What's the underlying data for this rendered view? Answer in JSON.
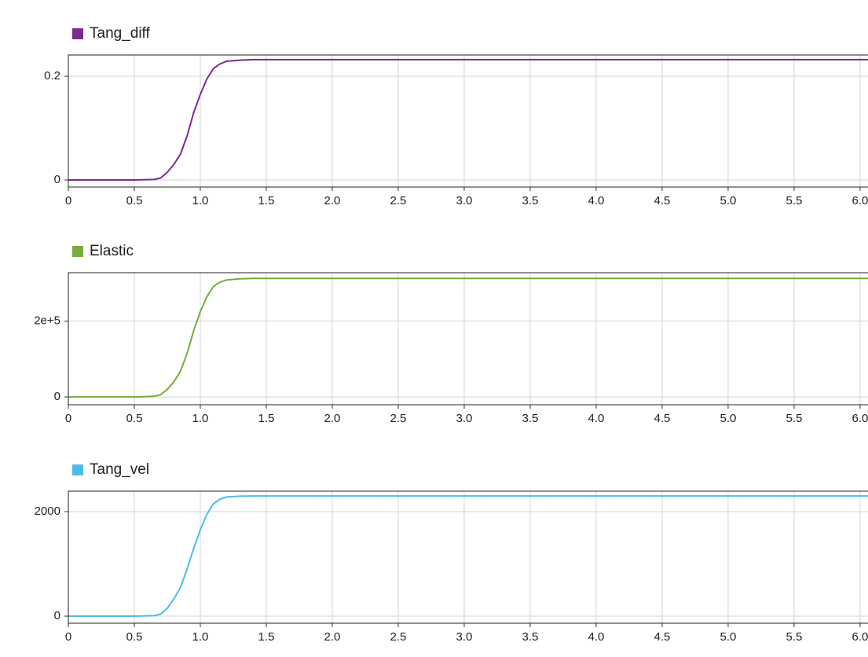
{
  "chart_data": [
    {
      "type": "line",
      "x": [
        0,
        0.5,
        0.65,
        0.7,
        0.75,
        0.8,
        0.85,
        0.9,
        0.95,
        1.0,
        1.05,
        1.1,
        1.15,
        1.2,
        1.3,
        1.4,
        1.5,
        2,
        3,
        4,
        5,
        6.06
      ],
      "series": [
        {
          "name": "Tang_diff",
          "color": "#7b2d8e",
          "values": [
            0,
            0,
            0.001,
            0.004,
            0.015,
            0.03,
            0.05,
            0.085,
            0.13,
            0.165,
            0.195,
            0.215,
            0.224,
            0.229,
            0.231,
            0.232,
            0.232,
            0.232,
            0.232,
            0.232,
            0.232,
            0.232
          ]
        }
      ],
      "xlim": [
        0,
        6.06
      ],
      "xticks": [
        0,
        0.5,
        {
          "value": 1,
          "label": "1.0"
        },
        1.5,
        {
          "value": 2,
          "label": "2.0"
        },
        2.5,
        {
          "value": 3,
          "label": "3.0"
        },
        3.5,
        {
          "value": 4,
          "label": "4.0"
        },
        4.5,
        {
          "value": 5,
          "label": "5.0"
        },
        5.5,
        {
          "value": 6,
          "label": "6.0"
        }
      ],
      "ylim": [
        -0.0136,
        0.241
      ],
      "yticks": [
        0,
        0.2
      ],
      "grid": true
    },
    {
      "type": "line",
      "x": [
        0,
        0.5,
        0.65,
        0.7,
        0.75,
        0.8,
        0.85,
        0.9,
        0.95,
        1.0,
        1.05,
        1.1,
        1.15,
        1.2,
        1.3,
        1.4,
        1.5,
        2,
        3,
        4,
        5,
        6.06
      ],
      "series": [
        {
          "name": "Elastic",
          "color": "#77ac3b",
          "values": [
            0,
            0,
            1500,
            6000,
            20000,
            40000,
            68000,
            115000,
            175000,
            225000,
            265000,
            292000,
            303000,
            309000,
            312000,
            313000,
            313000,
            313000,
            313000,
            313000,
            313000,
            313000
          ]
        }
      ],
      "xlim": [
        0,
        6.06
      ],
      "xticks": [
        0,
        0.5,
        {
          "value": 1,
          "label": "1.0"
        },
        1.5,
        {
          "value": 2,
          "label": "2.0"
        },
        2.5,
        {
          "value": 3,
          "label": "3.0"
        },
        3.5,
        {
          "value": 4,
          "label": "4.0"
        },
        4.5,
        {
          "value": 5,
          "label": "5.0"
        },
        5.5,
        {
          "value": 6,
          "label": "6.0"
        }
      ],
      "ylim": [
        -20600,
        328000
      ],
      "yticks": [
        0,
        {
          "value": 200000,
          "label": "2e+5"
        }
      ],
      "grid": true
    },
    {
      "type": "line",
      "x": [
        0,
        0.5,
        0.65,
        0.7,
        0.75,
        0.8,
        0.85,
        0.9,
        0.95,
        1.0,
        1.05,
        1.1,
        1.15,
        1.2,
        1.3,
        1.4,
        1.5,
        2,
        3,
        4,
        5,
        6.06
      ],
      "series": [
        {
          "name": "Tang_vel",
          "color": "#4dbde8",
          "values": [
            0,
            0,
            10,
            40,
            150,
            330,
            550,
            900,
            1300,
            1650,
            1950,
            2150,
            2240,
            2280,
            2295,
            2300,
            2300,
            2300,
            2300,
            2300,
            2300,
            2300
          ]
        }
      ],
      "xlim": [
        0,
        6.06
      ],
      "xticks": [
        0,
        0.5,
        {
          "value": 1,
          "label": "1.0"
        },
        1.5,
        {
          "value": 2,
          "label": "2.0"
        },
        2.5,
        {
          "value": 3,
          "label": "3.0"
        },
        3.5,
        {
          "value": 4,
          "label": "4.0"
        },
        4.5,
        {
          "value": 5,
          "label": "5.0"
        },
        5.5,
        {
          "value": 6,
          "label": "6.0"
        }
      ],
      "ylim": [
        -135,
        2391
      ],
      "yticks": [
        0,
        2000
      ],
      "grid": true
    }
  ]
}
